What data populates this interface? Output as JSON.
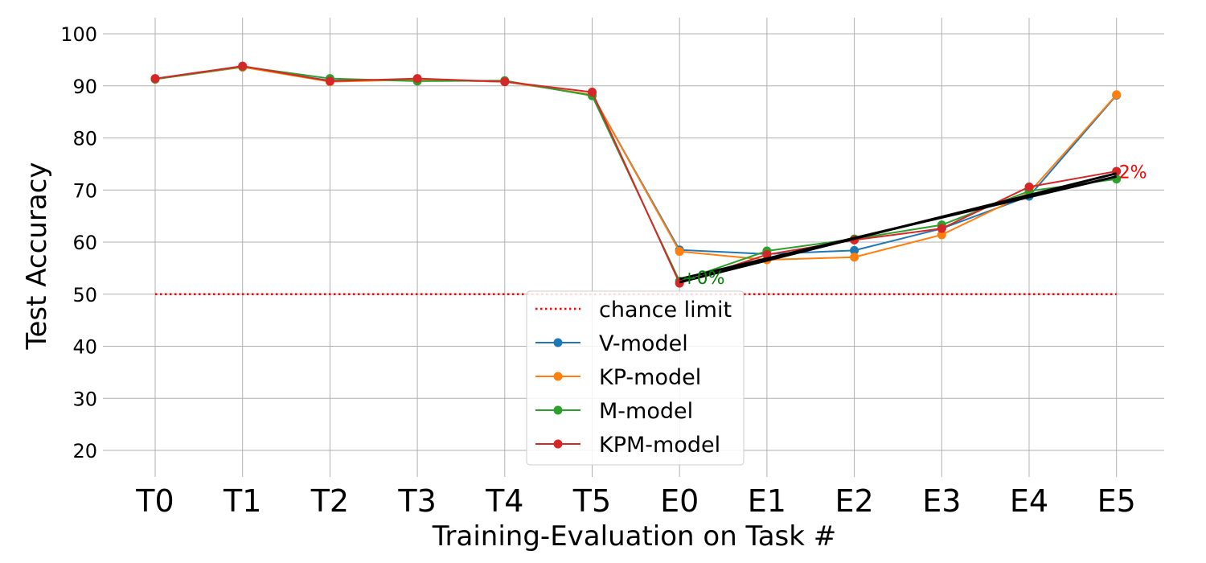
{
  "chart_data": {
    "type": "line",
    "xlabel": "Training-Evaluation on Task #",
    "ylabel": "Test Accuracy",
    "categories": [
      "T0",
      "T1",
      "T2",
      "T3",
      "T4",
      "T5",
      "E0",
      "E1",
      "E2",
      "E3",
      "E4",
      "E5"
    ],
    "ylim": [
      15,
      100
    ],
    "yticks": [
      20,
      30,
      40,
      50,
      60,
      70,
      80,
      90,
      100
    ],
    "grid": true,
    "legend_position": "bottom-center",
    "chance_limit": {
      "name": "chance limit",
      "value": 50,
      "color": "#ff0000",
      "style": "dotted"
    },
    "series": [
      {
        "name": "V-model",
        "color": "#1f77b4",
        "values": [
          91.3,
          93.6,
          91.0,
          91.2,
          90.8,
          88.3,
          58.5,
          57.7,
          58.4,
          62.6,
          68.8,
          88.2
        ]
      },
      {
        "name": "KP-model",
        "color": "#ff7f0e",
        "values": [
          91.3,
          93.6,
          90.8,
          91.2,
          90.8,
          88.3,
          58.2,
          56.6,
          57.1,
          61.4,
          69.5,
          88.3
        ]
      },
      {
        "name": "M-model",
        "color": "#2ca02c",
        "values": [
          91.3,
          93.7,
          91.4,
          90.9,
          91.0,
          88.1,
          52.5,
          58.3,
          60.6,
          63.3,
          69.8,
          72.1
        ]
      },
      {
        "name": "KPM-model",
        "color": "#d62728",
        "values": [
          91.4,
          93.8,
          90.9,
          91.4,
          90.8,
          88.8,
          52.1,
          57.6,
          60.4,
          62.6,
          70.6,
          73.6
        ]
      }
    ],
    "trend_line": {
      "color": "#000000",
      "from_category": "E0",
      "to_category": "E5",
      "values_start": [
        52.3,
        52.9
      ],
      "values_end": [
        73.2,
        72.6
      ]
    },
    "annotations": [
      {
        "text": "+0%",
        "category": "E0",
        "y": 53.2,
        "color": "#008000"
      },
      {
        "text": "2%",
        "category": "E5",
        "y": 73.5,
        "color": "#ff0000"
      }
    ]
  }
}
